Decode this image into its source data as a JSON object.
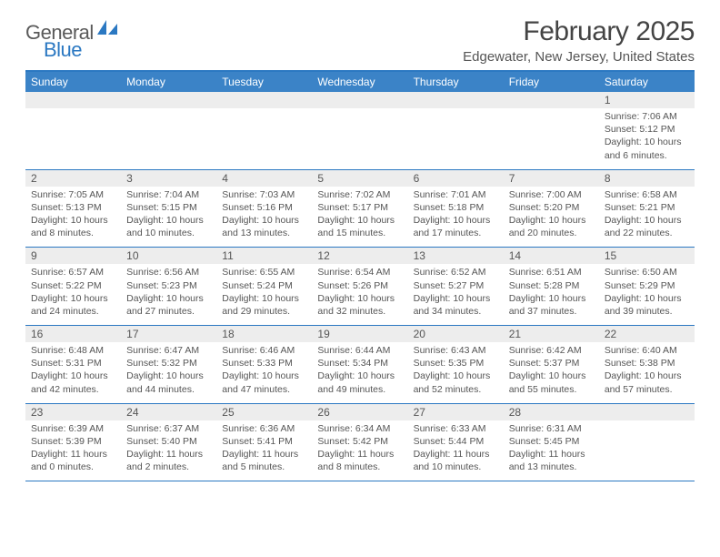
{
  "logo": {
    "text1": "General",
    "text2": "Blue"
  },
  "title": "February 2025",
  "location": "Edgewater, New Jersey, United States",
  "theme": {
    "accent": "#3b83c7",
    "accent_border": "#2b78c2",
    "daynum_bg": "#ededed",
    "text": "#555555"
  },
  "weekdays": [
    "Sunday",
    "Monday",
    "Tuesday",
    "Wednesday",
    "Thursday",
    "Friday",
    "Saturday"
  ],
  "weeks": [
    [
      {
        "day": "",
        "sunrise": "",
        "sunset": "",
        "daylight": ""
      },
      {
        "day": "",
        "sunrise": "",
        "sunset": "",
        "daylight": ""
      },
      {
        "day": "",
        "sunrise": "",
        "sunset": "",
        "daylight": ""
      },
      {
        "day": "",
        "sunrise": "",
        "sunset": "",
        "daylight": ""
      },
      {
        "day": "",
        "sunrise": "",
        "sunset": "",
        "daylight": ""
      },
      {
        "day": "",
        "sunrise": "",
        "sunset": "",
        "daylight": ""
      },
      {
        "day": "1",
        "sunrise": "Sunrise: 7:06 AM",
        "sunset": "Sunset: 5:12 PM",
        "daylight": "Daylight: 10 hours and 6 minutes."
      }
    ],
    [
      {
        "day": "2",
        "sunrise": "Sunrise: 7:05 AM",
        "sunset": "Sunset: 5:13 PM",
        "daylight": "Daylight: 10 hours and 8 minutes."
      },
      {
        "day": "3",
        "sunrise": "Sunrise: 7:04 AM",
        "sunset": "Sunset: 5:15 PM",
        "daylight": "Daylight: 10 hours and 10 minutes."
      },
      {
        "day": "4",
        "sunrise": "Sunrise: 7:03 AM",
        "sunset": "Sunset: 5:16 PM",
        "daylight": "Daylight: 10 hours and 13 minutes."
      },
      {
        "day": "5",
        "sunrise": "Sunrise: 7:02 AM",
        "sunset": "Sunset: 5:17 PM",
        "daylight": "Daylight: 10 hours and 15 minutes."
      },
      {
        "day": "6",
        "sunrise": "Sunrise: 7:01 AM",
        "sunset": "Sunset: 5:18 PM",
        "daylight": "Daylight: 10 hours and 17 minutes."
      },
      {
        "day": "7",
        "sunrise": "Sunrise: 7:00 AM",
        "sunset": "Sunset: 5:20 PM",
        "daylight": "Daylight: 10 hours and 20 minutes."
      },
      {
        "day": "8",
        "sunrise": "Sunrise: 6:58 AM",
        "sunset": "Sunset: 5:21 PM",
        "daylight": "Daylight: 10 hours and 22 minutes."
      }
    ],
    [
      {
        "day": "9",
        "sunrise": "Sunrise: 6:57 AM",
        "sunset": "Sunset: 5:22 PM",
        "daylight": "Daylight: 10 hours and 24 minutes."
      },
      {
        "day": "10",
        "sunrise": "Sunrise: 6:56 AM",
        "sunset": "Sunset: 5:23 PM",
        "daylight": "Daylight: 10 hours and 27 minutes."
      },
      {
        "day": "11",
        "sunrise": "Sunrise: 6:55 AM",
        "sunset": "Sunset: 5:24 PM",
        "daylight": "Daylight: 10 hours and 29 minutes."
      },
      {
        "day": "12",
        "sunrise": "Sunrise: 6:54 AM",
        "sunset": "Sunset: 5:26 PM",
        "daylight": "Daylight: 10 hours and 32 minutes."
      },
      {
        "day": "13",
        "sunrise": "Sunrise: 6:52 AM",
        "sunset": "Sunset: 5:27 PM",
        "daylight": "Daylight: 10 hours and 34 minutes."
      },
      {
        "day": "14",
        "sunrise": "Sunrise: 6:51 AM",
        "sunset": "Sunset: 5:28 PM",
        "daylight": "Daylight: 10 hours and 37 minutes."
      },
      {
        "day": "15",
        "sunrise": "Sunrise: 6:50 AM",
        "sunset": "Sunset: 5:29 PM",
        "daylight": "Daylight: 10 hours and 39 minutes."
      }
    ],
    [
      {
        "day": "16",
        "sunrise": "Sunrise: 6:48 AM",
        "sunset": "Sunset: 5:31 PM",
        "daylight": "Daylight: 10 hours and 42 minutes."
      },
      {
        "day": "17",
        "sunrise": "Sunrise: 6:47 AM",
        "sunset": "Sunset: 5:32 PM",
        "daylight": "Daylight: 10 hours and 44 minutes."
      },
      {
        "day": "18",
        "sunrise": "Sunrise: 6:46 AM",
        "sunset": "Sunset: 5:33 PM",
        "daylight": "Daylight: 10 hours and 47 minutes."
      },
      {
        "day": "19",
        "sunrise": "Sunrise: 6:44 AM",
        "sunset": "Sunset: 5:34 PM",
        "daylight": "Daylight: 10 hours and 49 minutes."
      },
      {
        "day": "20",
        "sunrise": "Sunrise: 6:43 AM",
        "sunset": "Sunset: 5:35 PM",
        "daylight": "Daylight: 10 hours and 52 minutes."
      },
      {
        "day": "21",
        "sunrise": "Sunrise: 6:42 AM",
        "sunset": "Sunset: 5:37 PM",
        "daylight": "Daylight: 10 hours and 55 minutes."
      },
      {
        "day": "22",
        "sunrise": "Sunrise: 6:40 AM",
        "sunset": "Sunset: 5:38 PM",
        "daylight": "Daylight: 10 hours and 57 minutes."
      }
    ],
    [
      {
        "day": "23",
        "sunrise": "Sunrise: 6:39 AM",
        "sunset": "Sunset: 5:39 PM",
        "daylight": "Daylight: 11 hours and 0 minutes."
      },
      {
        "day": "24",
        "sunrise": "Sunrise: 6:37 AM",
        "sunset": "Sunset: 5:40 PM",
        "daylight": "Daylight: 11 hours and 2 minutes."
      },
      {
        "day": "25",
        "sunrise": "Sunrise: 6:36 AM",
        "sunset": "Sunset: 5:41 PM",
        "daylight": "Daylight: 11 hours and 5 minutes."
      },
      {
        "day": "26",
        "sunrise": "Sunrise: 6:34 AM",
        "sunset": "Sunset: 5:42 PM",
        "daylight": "Daylight: 11 hours and 8 minutes."
      },
      {
        "day": "27",
        "sunrise": "Sunrise: 6:33 AM",
        "sunset": "Sunset: 5:44 PM",
        "daylight": "Daylight: 11 hours and 10 minutes."
      },
      {
        "day": "28",
        "sunrise": "Sunrise: 6:31 AM",
        "sunset": "Sunset: 5:45 PM",
        "daylight": "Daylight: 11 hours and 13 minutes."
      },
      {
        "day": "",
        "sunrise": "",
        "sunset": "",
        "daylight": ""
      }
    ]
  ]
}
